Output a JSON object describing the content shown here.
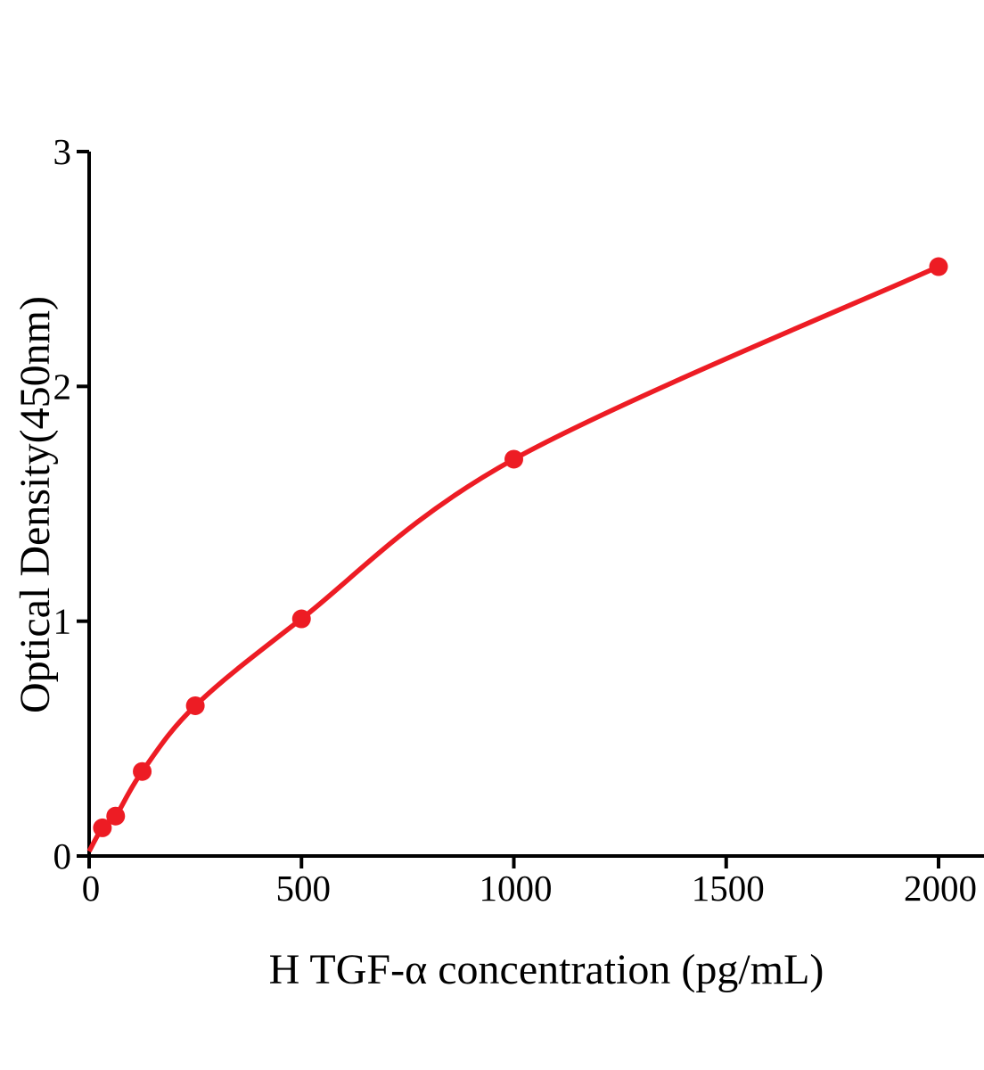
{
  "chart_data": {
    "type": "scatter",
    "title": "",
    "xlabel": "H TGF-α concentration (pg/mL)",
    "ylabel": "Optical Density(450nm)",
    "x": [
      31.25,
      62.5,
      125,
      250,
      500,
      1000,
      2000
    ],
    "y": [
      0.12,
      0.17,
      0.36,
      0.64,
      1.01,
      1.69,
      2.51
    ],
    "curve_start": {
      "x": 0,
      "y": 0.02
    },
    "xticks": [
      0,
      500,
      1000,
      1500,
      2000
    ],
    "yticks": [
      0,
      1,
      2,
      3
    ],
    "xlim": [
      0,
      2110
    ],
    "ylim": [
      0,
      3
    ],
    "grid": false,
    "legend": false,
    "marker": "circle",
    "marker_color": "#ED1C24",
    "line_color": "#ED1C24",
    "axis_color": "#000000",
    "background_color": "#FFFFFF"
  }
}
